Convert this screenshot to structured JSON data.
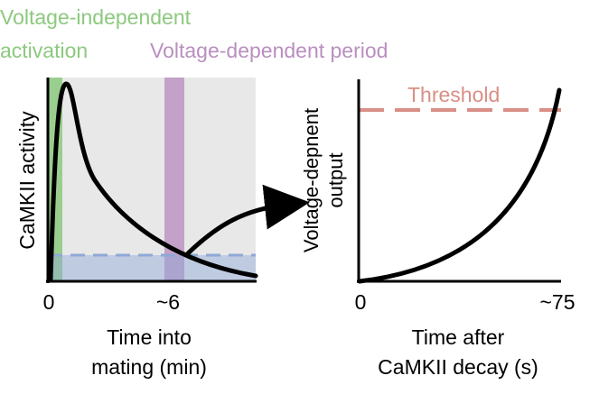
{
  "legend": {
    "independent_line1": "Voltage-independent",
    "independent_line2": "activation",
    "dependent": "Voltage-dependent period"
  },
  "left_panel": {
    "ylabel": "CaMKII activity",
    "x_tick_0": "0",
    "x_tick_6": "~6",
    "xlabel_line1": "Time into",
    "xlabel_line2": "mating (min)"
  },
  "right_panel": {
    "threshold_label": "Threshold",
    "ylabel_line1": "Voltage-depnent",
    "ylabel_line2": "output",
    "x_tick_0": "0",
    "x_tick_75": "~75",
    "xlabel_line1": "Time after",
    "xlabel_line2": "CaMKII decay (s)"
  },
  "colors": {
    "independent": "#8cc97e",
    "dependent": "#b98fbf",
    "panel_background": "#e8e8e8",
    "baseline": "#8fa9d6",
    "threshold": "#d98f85",
    "curve": "#000000"
  },
  "icons": {
    "connector": "curved-arrow-icon"
  }
}
